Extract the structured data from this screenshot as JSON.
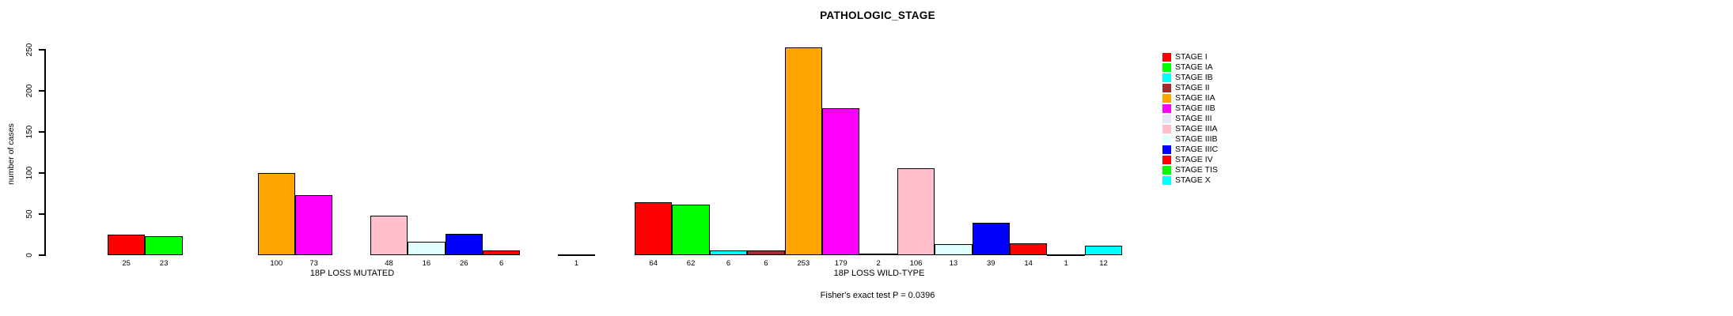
{
  "title": "PATHOLOGIC_STAGE",
  "footer_note": "Fisher's exact test P = 0.0396",
  "y_axis": {
    "label": "number of cases",
    "ticks": [
      0,
      50,
      100,
      150,
      200,
      250
    ]
  },
  "chart_data": {
    "type": "bar",
    "title": "PATHOLOGIC_STAGE",
    "xlabel": "",
    "ylabel": "number of cases",
    "ylim": [
      0,
      250
    ],
    "grid": false,
    "legend_position": "right",
    "bar_value_labels_shown": true,
    "zero_value_bars_hidden": true,
    "categories": [
      "STAGE I",
      "STAGE IA",
      "STAGE IB",
      "STAGE II",
      "STAGE IIA",
      "STAGE IIB",
      "STAGE III",
      "STAGE IIIA",
      "STAGE IIIB",
      "STAGE IIIC",
      "STAGE IV",
      "STAGE TIS",
      "STAGE X"
    ],
    "colors": [
      "#FF0000",
      "#00FF00",
      "#00FFFF",
      "#A52A2A",
      "#FFA500",
      "#FF00FF",
      "#E6E6FA",
      "#FFC0CB",
      "#E0FFFF",
      "#0000FF",
      "#FF0000",
      "#00FF00",
      "#00FFFF"
    ],
    "series": [
      {
        "name": "18P LOSS MUTATED",
        "values": [
          25,
          23,
          0,
          0,
          100,
          73,
          0,
          48,
          16,
          26,
          6,
          0,
          1
        ]
      },
      {
        "name": "18P LOSS WILD-TYPE",
        "values": [
          64,
          62,
          6,
          6,
          253,
          179,
          2,
          106,
          13,
          39,
          14,
          1,
          12
        ]
      }
    ],
    "annotation": "Fisher's exact test P = 0.0396"
  }
}
